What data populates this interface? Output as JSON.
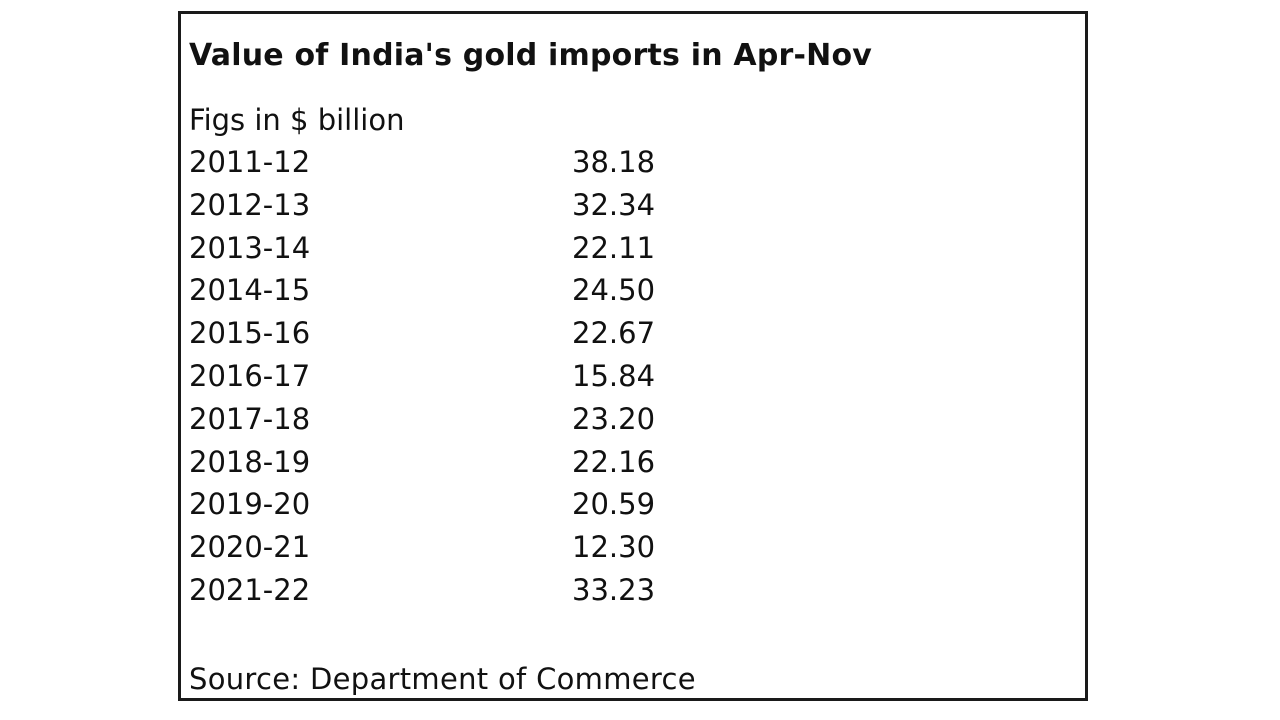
{
  "chart_data": {
    "type": "table",
    "title": "Value of India's gold imports in Apr-Nov",
    "subtitle": "Figs in $ billion",
    "rows": [
      {
        "year": "2011-12",
        "value": "38.18"
      },
      {
        "year": "2012-13",
        "value": "32.34"
      },
      {
        "year": "2013-14",
        "value": "22.11"
      },
      {
        "year": "2014-15",
        "value": "24.50"
      },
      {
        "year": "2015-16",
        "value": "22.67"
      },
      {
        "year": "2016-17",
        "value": "15.84"
      },
      {
        "year": "2017-18",
        "value": "23.20"
      },
      {
        "year": "2018-19",
        "value": "22.16"
      },
      {
        "year": "2019-20",
        "value": "20.59"
      },
      {
        "year": "2020-21",
        "value": "12.30"
      },
      {
        "year": "2021-22",
        "value": "33.23"
      }
    ],
    "source": "Source: Department of Commerce"
  }
}
